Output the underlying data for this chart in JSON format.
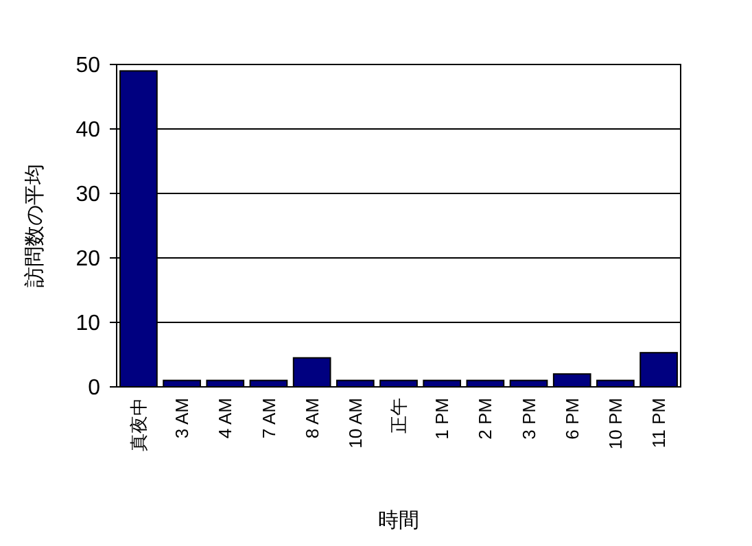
{
  "chart_data": {
    "type": "bar",
    "xlabel": "時間",
    "ylabel": "訪問数の平均",
    "categories": [
      "真夜中",
      "3 AM",
      "4 AM",
      "7 AM",
      "8 AM",
      "10 AM",
      "正午",
      "1 PM",
      "2 PM",
      "3 PM",
      "6 PM",
      "10 PM",
      "11 PM"
    ],
    "values": [
      49,
      1,
      1,
      1,
      4.5,
      1,
      1,
      1,
      1,
      1,
      2,
      1,
      5.3
    ],
    "color": "#000080",
    "ylim": [
      0,
      50
    ],
    "yticks": [
      0,
      10,
      20,
      30,
      40,
      50
    ],
    "grid": "y"
  }
}
